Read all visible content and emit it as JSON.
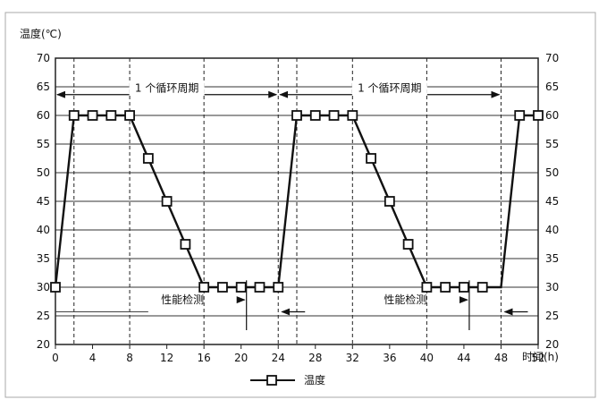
{
  "chart_data": {
    "type": "line",
    "ylabel": "温度(℃)",
    "xlabel": "时间(h)",
    "xlim": [
      0,
      52
    ],
    "ylim": [
      20,
      70
    ],
    "x_ticks": [
      0,
      4,
      8,
      12,
      16,
      20,
      24,
      28,
      32,
      36,
      40,
      44,
      48,
      52
    ],
    "y_ticks": [
      20,
      25,
      30,
      35,
      40,
      45,
      50,
      55,
      60,
      65,
      70
    ],
    "grid": true,
    "legend_position": "bottom-center",
    "series": [
      {
        "name": "温度",
        "x": [
          0,
          2,
          4,
          6,
          8,
          10,
          12,
          14,
          16,
          18,
          20,
          22,
          24,
          26,
          28,
          30,
          32,
          34,
          36,
          38,
          40,
          42,
          44,
          46,
          48,
          50,
          52
        ],
        "y": [
          30,
          60,
          60,
          60,
          60,
          52.5,
          45,
          37.5,
          30,
          30,
          30,
          30,
          30,
          60,
          60,
          60,
          60,
          52.5,
          45,
          37.5,
          30,
          30,
          30,
          30,
          30,
          60,
          60
        ]
      }
    ],
    "annotations": [
      {
        "text": "1 个循环周期",
        "x_start": 0,
        "x_end": 24,
        "y": 65.2
      },
      {
        "text": "1 个循环周期",
        "x_start": 24,
        "x_end": 48,
        "y": 65.2
      },
      {
        "text": "性能检测",
        "x_start": 16,
        "x_end": 24,
        "y": 24.5
      },
      {
        "text": "性能检测",
        "x_start": 40,
        "x_end": 48,
        "y": 24.5
      }
    ],
    "dashed_verticals": [
      0,
      2,
      8,
      16,
      24,
      26,
      32,
      40,
      48
    ]
  }
}
